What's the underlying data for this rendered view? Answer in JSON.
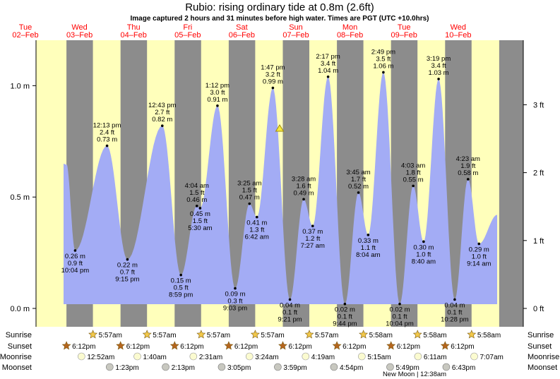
{
  "header": {
    "title": "Rubio: rising  ordinary tide at 0.8m (2.6ft)",
    "subtitle": "Image captured 2 hours and 31 minutes before high water. Times are PGT (UTC +10.0hrs)"
  },
  "days": [
    {
      "dow": "Tue",
      "date": "02–Feb"
    },
    {
      "dow": "Wed",
      "date": "03–Feb"
    },
    {
      "dow": "Thu",
      "date": "04–Feb"
    },
    {
      "dow": "Fri",
      "date": "05–Feb"
    },
    {
      "dow": "Sat",
      "date": "06–Feb"
    },
    {
      "dow": "Sun",
      "date": "07–Feb"
    },
    {
      "dow": "Mon",
      "date": "08–Feb"
    },
    {
      "dow": "Tue",
      "date": "09–Feb"
    },
    {
      "dow": "Wed",
      "date": "10–Feb"
    }
  ],
  "colors": {
    "day": "#ffffbb",
    "night": "#8c8c8c",
    "tide": "#a3acf5",
    "day_label": "#ff0000",
    "sun_icon": "#f2c84a",
    "sunset_icon": "#b5651d",
    "moonrise_icon": "#fbfbd0",
    "moonset_icon": "#c8c8c0"
  },
  "chart_data": {
    "type": "area",
    "y_left_unit": "m",
    "y_right_unit": "ft",
    "yticks_left": [
      "0.0 m",
      "0.5 m",
      "1.0 m"
    ],
    "yticks_right": [
      "0 ft",
      "1 ft",
      "2 ft",
      "3 ft"
    ],
    "current_level_m": 0.8,
    "tide_events": [
      {
        "time": "10:04 pm",
        "m": "0.26 m",
        "ft": "0.9 ft",
        "kind": "low",
        "day": 0
      },
      {
        "time": "12:13 pm",
        "m": "0.73 m",
        "ft": "2.4 ft",
        "kind": "high",
        "day": 1
      },
      {
        "time": "9:15 pm",
        "m": "0.22 m",
        "ft": "0.7 ft",
        "kind": "low",
        "day": 1
      },
      {
        "time": "12:43 pm",
        "m": "0.82 m",
        "ft": "2.7 ft",
        "kind": "high",
        "day": 2
      },
      {
        "time": "8:59 pm",
        "m": "0.15 m",
        "ft": "0.5 ft",
        "kind": "low",
        "day": 2
      },
      {
        "time": "4:04 am",
        "m": "0.46 m",
        "ft": "1.5 ft",
        "kind": "high",
        "day": 3
      },
      {
        "time": "5:30 am",
        "m": "0.45 m",
        "ft": "1.5 ft",
        "kind": "low",
        "day": 3
      },
      {
        "time": "1:12 pm",
        "m": "0.91 m",
        "ft": "3.0 ft",
        "kind": "high",
        "day": 3
      },
      {
        "time": "9:03 pm",
        "m": "0.09 m",
        "ft": "0.3 ft",
        "kind": "low",
        "day": 3
      },
      {
        "time": "3:25 am",
        "m": "0.47 m",
        "ft": "1.5 ft",
        "kind": "high",
        "day": 4
      },
      {
        "time": "6:42 am",
        "m": "0.41 m",
        "ft": "1.3 ft",
        "kind": "low",
        "day": 4
      },
      {
        "time": "1:47 pm",
        "m": "0.99 m",
        "ft": "3.2 ft",
        "kind": "high",
        "day": 4
      },
      {
        "time": "9:21 pm",
        "m": "0.04 m",
        "ft": "0.1 ft",
        "kind": "low",
        "day": 4
      },
      {
        "time": "3:28 am",
        "m": "0.49 m",
        "ft": "1.6 ft",
        "kind": "high",
        "day": 5
      },
      {
        "time": "7:27 am",
        "m": "0.37 m",
        "ft": "1.2 ft",
        "kind": "low",
        "day": 5
      },
      {
        "time": "2:17 pm",
        "m": "1.04 m",
        "ft": "3.4 ft",
        "kind": "high",
        "day": 5
      },
      {
        "time": "9:44 pm",
        "m": "0.02 m",
        "ft": "0.1 ft",
        "kind": "low",
        "day": 5
      },
      {
        "time": "3:45 am",
        "m": "0.52 m",
        "ft": "1.7 ft",
        "kind": "high",
        "day": 6
      },
      {
        "time": "8:04 am",
        "m": "0.33 m",
        "ft": "1.1 ft",
        "kind": "low",
        "day": 6
      },
      {
        "time": "2:49 pm",
        "m": "1.06 m",
        "ft": "3.5 ft",
        "kind": "high",
        "day": 6
      },
      {
        "time": "10:04 pm",
        "m": "0.02 m",
        "ft": "0.1 ft",
        "kind": "low",
        "day": 6
      },
      {
        "time": "4:03 am",
        "m": "0.55 m",
        "ft": "1.8 ft",
        "kind": "high",
        "day": 7
      },
      {
        "time": "8:40 am",
        "m": "0.30 m",
        "ft": "1.0 ft",
        "kind": "low",
        "day": 7
      },
      {
        "time": "3:19 pm",
        "m": "1.03 m",
        "ft": "3.4 ft",
        "kind": "high",
        "day": 7
      },
      {
        "time": "10:28 pm",
        "m": "0.04 m",
        "ft": "0.1 ft",
        "kind": "low",
        "day": 7
      },
      {
        "time": "4:23 am",
        "m": "0.58 m",
        "ft": "1.9 ft",
        "kind": "high",
        "day": 8
      },
      {
        "time": "9:14 am",
        "m": "0.29 m",
        "ft": "1.0 ft",
        "kind": "low",
        "day": 8
      }
    ]
  },
  "astro": {
    "row_labels": [
      "Sunrise",
      "Sunset",
      "Moonrise",
      "Moonset"
    ],
    "sunrise": [
      {
        "time": "5:57am",
        "day": 1
      },
      {
        "time": "5:57am",
        "day": 2
      },
      {
        "time": "5:57am",
        "day": 3
      },
      {
        "time": "5:57am",
        "day": 4
      },
      {
        "time": "5:57am",
        "day": 5
      },
      {
        "time": "5:58am",
        "day": 6
      },
      {
        "time": "5:58am",
        "day": 7
      },
      {
        "time": "5:58am",
        "day": 8
      }
    ],
    "sunset": [
      {
        "time": "6:12pm",
        "day": 0
      },
      {
        "time": "6:12pm",
        "day": 1
      },
      {
        "time": "6:12pm",
        "day": 2
      },
      {
        "time": "6:12pm",
        "day": 3
      },
      {
        "time": "6:12pm",
        "day": 4
      },
      {
        "time": "6:12pm",
        "day": 5
      },
      {
        "time": "6:12pm",
        "day": 6
      },
      {
        "time": "6:12pm",
        "day": 7
      }
    ],
    "moonrise": [
      {
        "time": "12:52am",
        "day": 1
      },
      {
        "time": "1:40am",
        "day": 2
      },
      {
        "time": "2:31am",
        "day": 3
      },
      {
        "time": "3:24am",
        "day": 4
      },
      {
        "time": "4:19am",
        "day": 5
      },
      {
        "time": "5:15am",
        "day": 6
      },
      {
        "time": "6:11am",
        "day": 7
      },
      {
        "time": "7:07am",
        "day": 8
      }
    ],
    "moonset": [
      {
        "time": "1:23pm",
        "day": 1
      },
      {
        "time": "2:13pm",
        "day": 2
      },
      {
        "time": "3:05pm",
        "day": 3
      },
      {
        "time": "3:59pm",
        "day": 4
      },
      {
        "time": "4:54pm",
        "day": 5
      },
      {
        "time": "5:49pm",
        "day": 6
      },
      {
        "time": "6:43pm",
        "day": 7
      }
    ],
    "moon_phase_note": "New Moon | 12:38am"
  }
}
